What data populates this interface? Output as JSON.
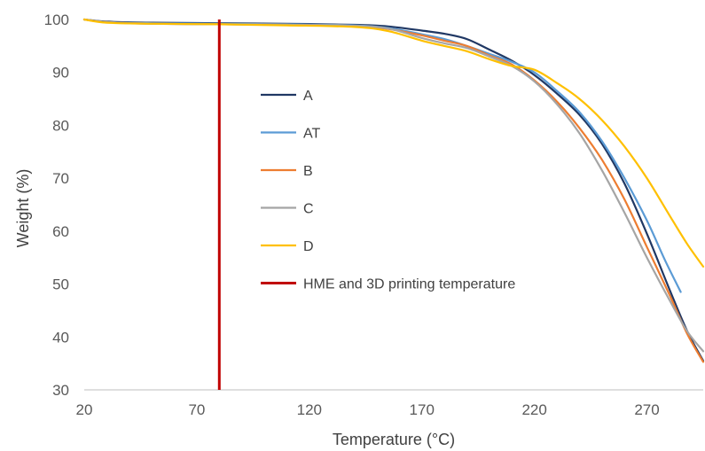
{
  "chart_data": {
    "type": "line",
    "title": "",
    "xlabel": "Temperature (°C)",
    "ylabel": "Weight (%)",
    "xlim": [
      20,
      295
    ],
    "ylim": [
      30,
      100
    ],
    "x_ticks": [
      20,
      70,
      120,
      170,
      220,
      270
    ],
    "y_ticks": [
      30,
      40,
      50,
      60,
      70,
      80,
      90,
      100
    ],
    "grid": false,
    "legend_position": "center",
    "series": [
      {
        "name": "A",
        "color": "#203864",
        "x": [
          20,
          30,
          50,
          80,
          110,
          140,
          155,
          170,
          180,
          190,
          200,
          210,
          220,
          230,
          240,
          250,
          260,
          270,
          280,
          288,
          295
        ],
        "y": [
          100,
          99.6,
          99.4,
          99.3,
          99.2,
          99.0,
          98.7,
          97.9,
          97.3,
          96.3,
          94.3,
          92.2,
          89.5,
          86.0,
          82.0,
          76.5,
          69.0,
          59.5,
          49.0,
          41.0,
          35.5
        ]
      },
      {
        "name": "AT",
        "color": "#5B9BD5",
        "x": [
          20,
          30,
          50,
          80,
          110,
          140,
          155,
          170,
          180,
          190,
          200,
          210,
          220,
          230,
          240,
          250,
          260,
          270,
          278,
          285
        ],
        "y": [
          100,
          99.5,
          99.3,
          99.2,
          99.1,
          98.9,
          98.4,
          97.2,
          96.3,
          95.0,
          93.5,
          92.0,
          90.0,
          86.5,
          82.5,
          77.0,
          70.0,
          62.0,
          54.5,
          48.5
        ]
      },
      {
        "name": "B",
        "color": "#ED7D31",
        "x": [
          20,
          30,
          50,
          80,
          110,
          140,
          155,
          170,
          180,
          190,
          200,
          210,
          220,
          230,
          240,
          250,
          260,
          270,
          280,
          288,
          295
        ],
        "y": [
          100,
          99.5,
          99.2,
          99.1,
          99.0,
          98.8,
          98.2,
          97.0,
          96.0,
          95.0,
          93.2,
          91.5,
          88.5,
          84.5,
          79.5,
          73.5,
          66.0,
          57.0,
          48.0,
          40.5,
          35.3
        ]
      },
      {
        "name": "C",
        "color": "#A5A5A5",
        "x": [
          20,
          30,
          50,
          80,
          110,
          140,
          155,
          170,
          180,
          190,
          200,
          210,
          220,
          230,
          240,
          250,
          260,
          270,
          280,
          288,
          295
        ],
        "y": [
          100,
          99.5,
          99.2,
          99.1,
          99.0,
          98.8,
          98.3,
          96.5,
          95.5,
          94.6,
          93.0,
          91.2,
          88.3,
          84.0,
          78.5,
          71.5,
          63.5,
          55.0,
          47.0,
          41.0,
          37.3
        ]
      },
      {
        "name": "D",
        "color": "#FFC000",
        "x": [
          20,
          30,
          50,
          80,
          110,
          140,
          155,
          170,
          180,
          190,
          200,
          210,
          220,
          230,
          240,
          250,
          260,
          270,
          280,
          288,
          295
        ],
        "y": [
          100,
          99.4,
          99.2,
          99.1,
          98.9,
          98.6,
          97.8,
          96.0,
          95.0,
          94.0,
          92.5,
          91.2,
          90.5,
          88.0,
          85.0,
          81.0,
          76.0,
          70.0,
          63.0,
          57.5,
          53.3
        ]
      }
    ],
    "annotations": [
      {
        "type": "vertical_line",
        "x": 80,
        "label": "HME and 3D printing temperature",
        "color": "#C00000"
      }
    ]
  }
}
